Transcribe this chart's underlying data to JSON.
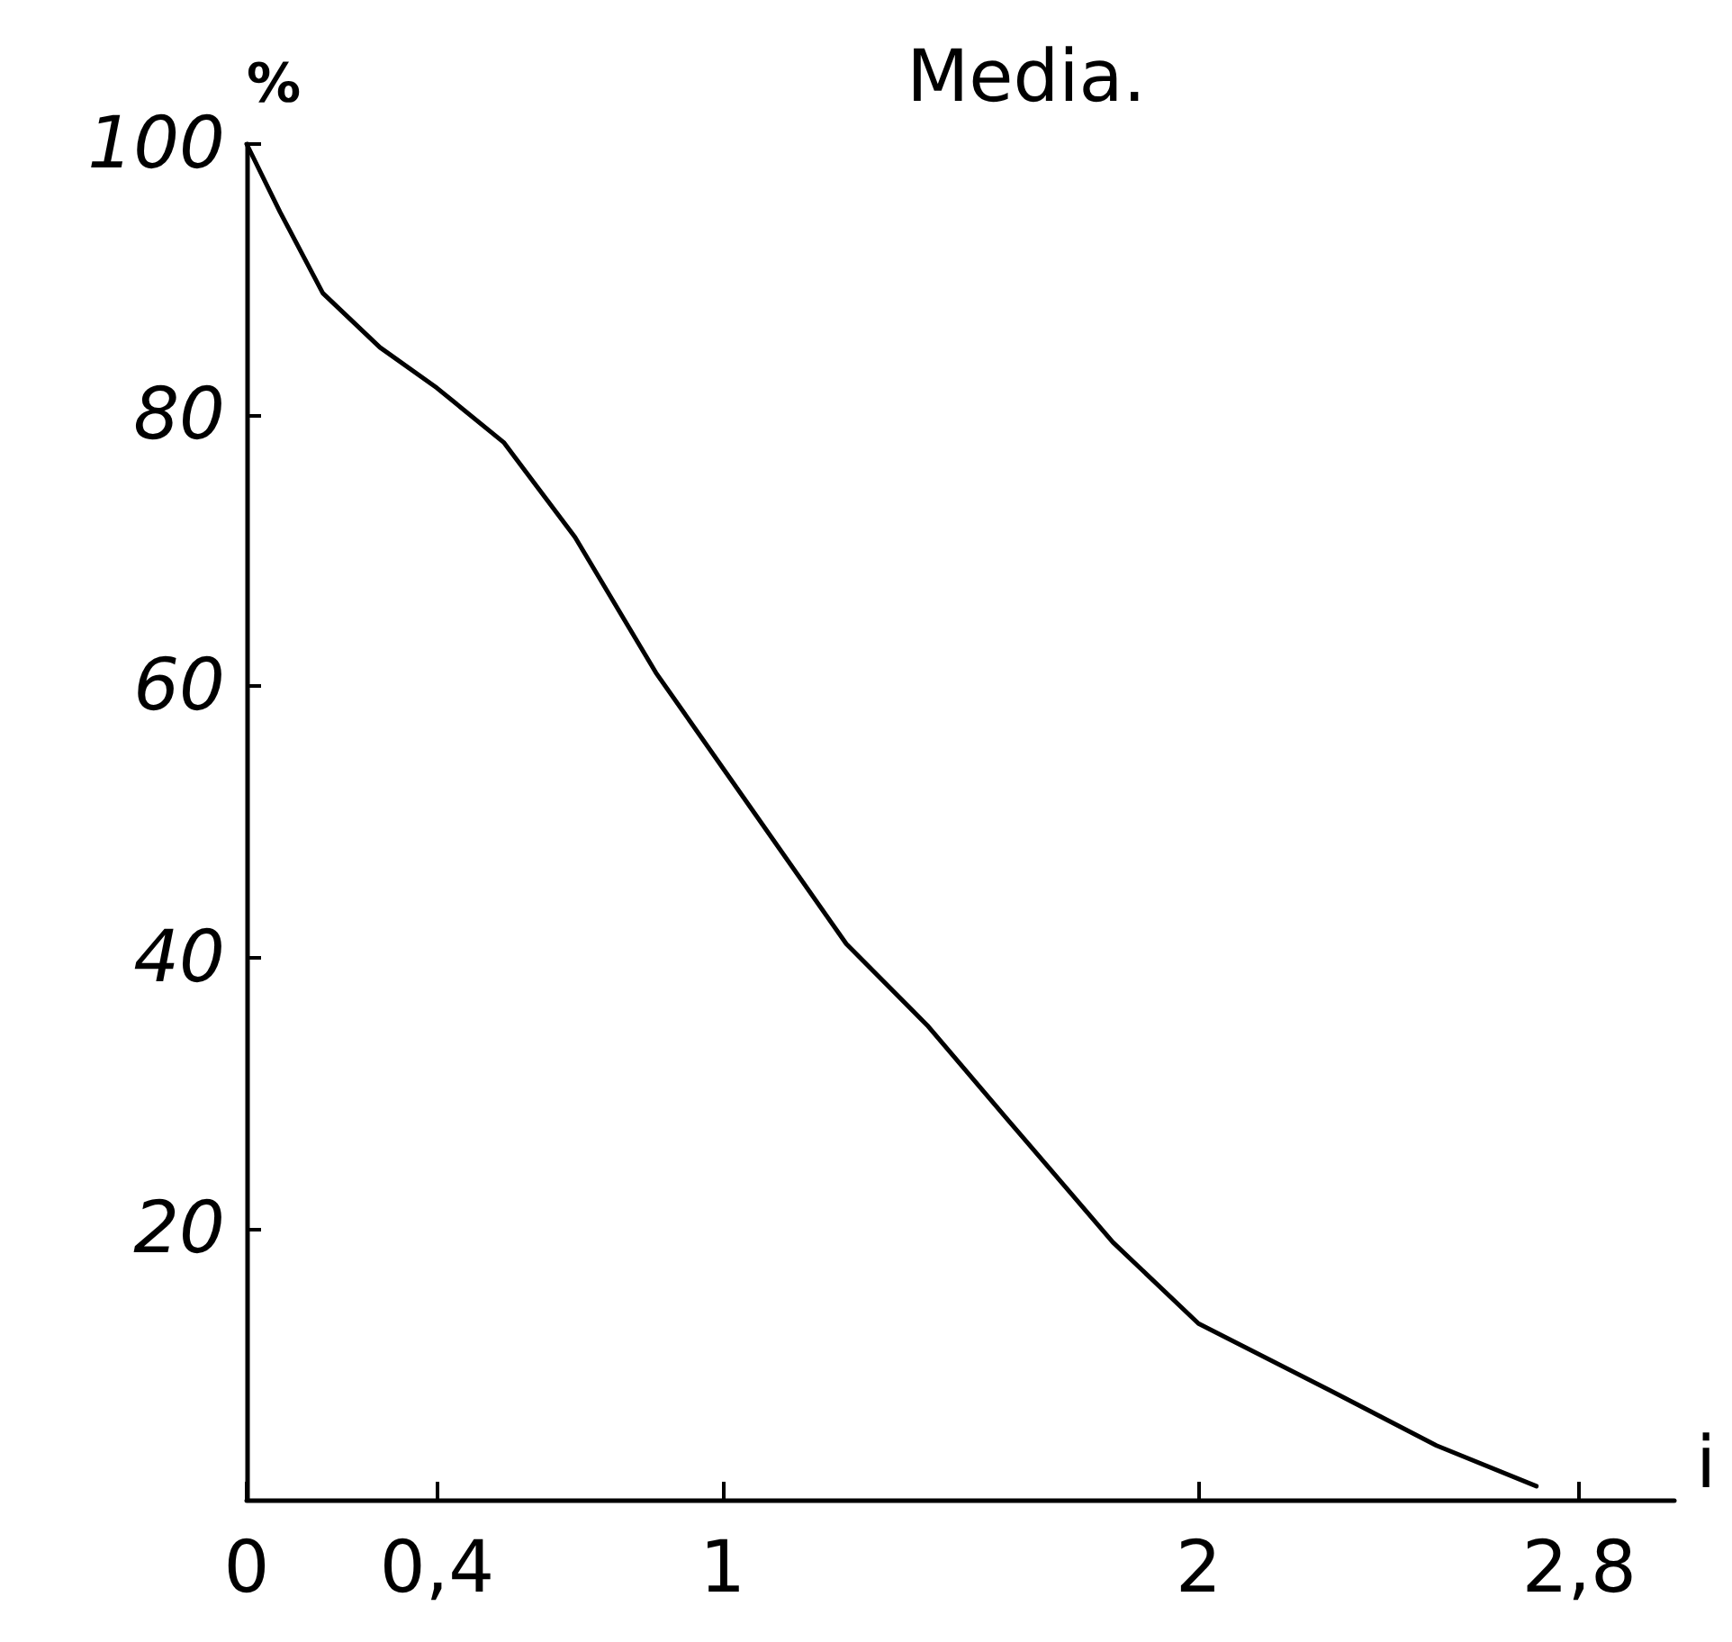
{
  "chart_data": {
    "type": "line",
    "title": "Media.",
    "xlabel": "i",
    "ylabel": "%",
    "x": [
      0,
      0.07,
      0.16,
      0.28,
      0.4,
      0.54,
      0.69,
      0.86,
      1,
      1.26,
      1.43,
      1.6,
      1.82,
      2,
      2.28,
      2.5,
      2.71
    ],
    "series": [
      {
        "color": "#000000",
        "values": [
          100,
          95,
          89,
          85,
          82,
          78,
          71,
          61,
          54,
          41,
          35,
          28,
          19,
          13,
          8,
          4,
          1
        ]
      }
    ],
    "xlim": [
      0,
      3
    ],
    "xticks": [
      0,
      {
        "value": 0.4,
        "label": "0,4"
      },
      1,
      2,
      {
        "value": 2.8,
        "label": "2,8"
      }
    ],
    "ylim": [
      0,
      100
    ],
    "yticks": [
      20,
      40,
      60,
      80,
      100
    ],
    "grid": false,
    "marker": "none",
    "line_style": "solid"
  }
}
